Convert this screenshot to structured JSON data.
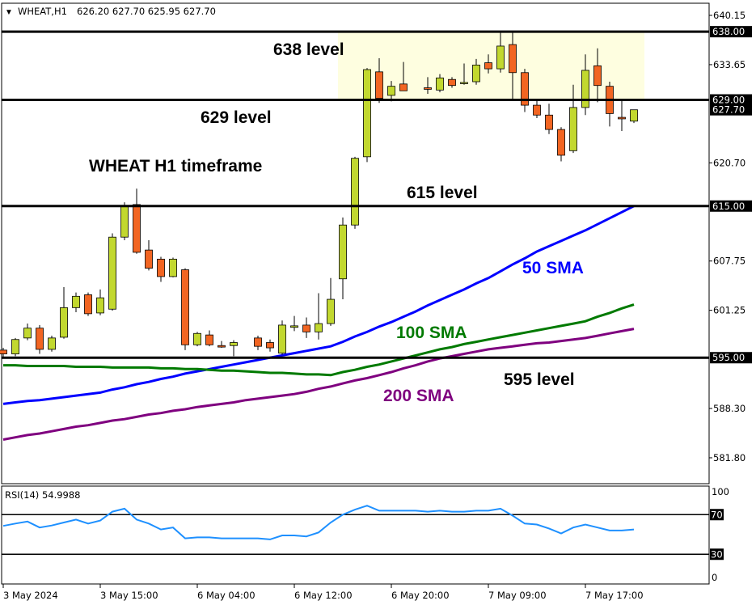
{
  "header": {
    "symbol": "WHEAT,H1",
    "ohlc": "626.20 627.70 625.95 627.70"
  },
  "colors": {
    "bull": "#c2d82f",
    "bear": "#f26522",
    "sma50": "#0000ff",
    "sma100": "#007a00",
    "sma200": "#7f007f",
    "rsi": "#1e90ff",
    "zone": "#fefee0"
  },
  "chart_data": [
    {
      "type": "candlestick",
      "title": "WHEAT H1 timeframe",
      "ylim": [
        579.5,
        641.5
      ],
      "y_ticks": [
        "640.15",
        "633.65",
        "620.70",
        "607.75",
        "601.25",
        "588.30",
        "581.80"
      ],
      "x_tick_labels": [
        {
          "bar": 0,
          "label": "3 May 2024"
        },
        {
          "bar": 8,
          "label": "3 May 15:00"
        },
        {
          "bar": 16,
          "label": "6 May 04:00"
        },
        {
          "bar": 24,
          "label": "6 May 12:00"
        },
        {
          "bar": 32,
          "label": "6 May 20:00"
        },
        {
          "bar": 40,
          "label": "7 May 09:00"
        },
        {
          "bar": 48,
          "label": "7 May 17:00"
        }
      ],
      "candles": [
        [
          596.0,
          596.3,
          595.0,
          595.5
        ],
        [
          595.5,
          597.6,
          595.2,
          597.4
        ],
        [
          597.6,
          599.5,
          597.3,
          598.9
        ],
        [
          598.9,
          599.3,
          595.5,
          596.1
        ],
        [
          596.1,
          597.9,
          595.8,
          597.6
        ],
        [
          597.7,
          604.3,
          597.5,
          601.6
        ],
        [
          601.6,
          603.6,
          601.0,
          603.1
        ],
        [
          603.3,
          603.6,
          600.5,
          600.8
        ],
        [
          600.9,
          604.0,
          600.6,
          602.9
        ],
        [
          601.4,
          611.4,
          601.2,
          610.9
        ],
        [
          610.9,
          615.5,
          610.5,
          615.0
        ],
        [
          615.2,
          617.3,
          608.7,
          608.9
        ],
        [
          609.2,
          610.5,
          606.5,
          606.8
        ],
        [
          608.0,
          608.3,
          605.0,
          605.7
        ],
        [
          605.7,
          608.2,
          605.6,
          608.0
        ],
        [
          606.6,
          606.8,
          596.0,
          596.7
        ],
        [
          596.7,
          598.4,
          596.5,
          598.2
        ],
        [
          598.0,
          598.6,
          596.5,
          596.7
        ],
        [
          596.6,
          597.2,
          596.3,
          596.4
        ],
        [
          596.6,
          597.3,
          595.2,
          597.0
        ],
        null,
        [
          597.6,
          597.9,
          596.0,
          596.5
        ],
        [
          597.0,
          597.4,
          595.8,
          596.3
        ],
        [
          595.6,
          599.9,
          595.4,
          599.3
        ],
        [
          599.0,
          600.5,
          598.5,
          599.2
        ],
        [
          599.3,
          600.3,
          597.6,
          598.4
        ],
        [
          598.4,
          603.5,
          597.4,
          599.5
        ],
        [
          599.5,
          605.5,
          599.2,
          602.7
        ],
        [
          605.4,
          613.5,
          602.7,
          612.5
        ],
        [
          612.5,
          621.5,
          612.0,
          621.3
        ],
        [
          621.5,
          633.2,
          620.8,
          633.0
        ],
        [
          632.7,
          634.5,
          628.6,
          629.2
        ],
        [
          629.6,
          631.5,
          628.8,
          630.8
        ],
        [
          631.1,
          634.0,
          630.2,
          630.2
        ],
        null,
        [
          630.6,
          632.0,
          629.8,
          630.4
        ],
        [
          630.3,
          632.4,
          630.0,
          631.9
        ],
        [
          631.7,
          632.0,
          630.6,
          630.9
        ],
        [
          631.2,
          633.8,
          631.0,
          631.3
        ],
        [
          631.4,
          634.4,
          631.0,
          633.6
        ],
        [
          633.9,
          635.0,
          632.5,
          633.1
        ],
        [
          633.1,
          638.0,
          632.6,
          636.1
        ],
        [
          636.3,
          638.0,
          629.0,
          632.6
        ],
        [
          632.6,
          633.1,
          627.4,
          628.3
        ],
        [
          628.3,
          628.9,
          626.6,
          627.0
        ],
        [
          627.0,
          628.5,
          624.5,
          625.1
        ],
        [
          625.1,
          625.4,
          620.9,
          621.7
        ],
        [
          622.3,
          631.0,
          622.0,
          628.0
        ],
        [
          628.0,
          635.0,
          627.0,
          632.9
        ],
        [
          633.5,
          635.8,
          628.7,
          630.9
        ],
        [
          630.8,
          631.4,
          625.5,
          627.2
        ],
        [
          626.7,
          629.0,
          624.9,
          626.5
        ],
        [
          626.2,
          627.7,
          625.95,
          627.7
        ]
      ],
      "series": [
        {
          "name": "50 SMA",
          "values": [
            588.9,
            589.1,
            589.3,
            589.4,
            589.6,
            589.8,
            590.0,
            590.2,
            590.4,
            590.8,
            591.1,
            591.5,
            591.8,
            592.2,
            592.5,
            592.9,
            593.2,
            593.5,
            593.8,
            594.1,
            594.4,
            594.7,
            595.0,
            595.3,
            595.6,
            595.9,
            596.2,
            596.5,
            597.1,
            597.8,
            598.4,
            599.1,
            599.7,
            600.4,
            601.1,
            601.9,
            602.6,
            603.3,
            604.0,
            604.8,
            605.5,
            606.4,
            607.3,
            608.1,
            609.0,
            609.7,
            610.4,
            611.1,
            611.8,
            612.6,
            613.4,
            614.2,
            615.0
          ]
        },
        {
          "name": "100 SMA",
          "values": [
            594.0,
            594.0,
            593.9,
            593.9,
            593.9,
            593.9,
            593.8,
            593.8,
            593.8,
            593.7,
            593.7,
            593.7,
            593.7,
            593.6,
            593.6,
            593.5,
            593.5,
            593.4,
            593.3,
            593.3,
            593.2,
            593.1,
            593.0,
            593.0,
            592.9,
            592.8,
            592.8,
            592.7,
            593.1,
            593.4,
            593.8,
            594.1,
            594.5,
            594.9,
            595.3,
            595.7,
            596.1,
            596.4,
            596.8,
            597.1,
            597.4,
            597.7,
            598.0,
            598.3,
            598.6,
            598.9,
            599.2,
            599.5,
            599.8,
            600.4,
            600.9,
            601.5,
            602.0
          ]
        },
        {
          "name": "200 SMA",
          "values": [
            584.2,
            584.5,
            584.8,
            585.0,
            585.3,
            585.6,
            585.9,
            586.1,
            586.4,
            586.7,
            586.9,
            587.2,
            587.5,
            587.7,
            588.0,
            588.2,
            588.5,
            588.7,
            588.9,
            589.1,
            589.4,
            589.6,
            589.8,
            590.0,
            590.2,
            590.5,
            590.9,
            591.2,
            591.6,
            592.0,
            592.3,
            592.7,
            593.1,
            593.6,
            594.0,
            594.5,
            594.9,
            595.2,
            595.5,
            595.8,
            596.1,
            596.3,
            596.5,
            596.7,
            596.9,
            597.0,
            597.2,
            597.4,
            597.6,
            597.9,
            598.2,
            598.5,
            598.8
          ]
        }
      ],
      "levels": [
        {
          "value": 638.0,
          "axis_label": "638.00",
          "text": "638 level"
        },
        {
          "value": 629.0,
          "axis_label": "629.00",
          "text": "629 level"
        },
        {
          "value": 615.0,
          "axis_label": "615.00",
          "text": "615 level"
        },
        {
          "value": 595.0,
          "axis_label": "595.00",
          "text": "595 level"
        }
      ],
      "zone": {
        "from_bar": 28,
        "to_bar": 53,
        "low": 629.0,
        "high": 638.0
      },
      "last_price_label": "627.70"
    },
    {
      "type": "line",
      "title": "RSI(14) 54.9988",
      "ylim": [
        0,
        100
      ],
      "y_ticks": [
        "100",
        "0"
      ],
      "levels": [
        {
          "value": 70,
          "label": "70"
        },
        {
          "value": 30,
          "label": "30"
        }
      ],
      "values": [
        58.6,
        61,
        63,
        57,
        59,
        62,
        65,
        61,
        64,
        73,
        76,
        65,
        61,
        55,
        57,
        46,
        47,
        47,
        46,
        46,
        46,
        46,
        45,
        49,
        49,
        48,
        52,
        62,
        70,
        75,
        79,
        74,
        74,
        74,
        74,
        73,
        74,
        73,
        73,
        74,
        74,
        76,
        69,
        61,
        60,
        56,
        51,
        57,
        60,
        57,
        54,
        54,
        55
      ]
    }
  ]
}
